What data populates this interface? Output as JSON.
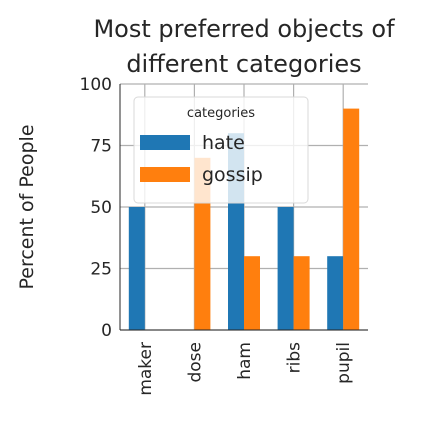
{
  "chart_data": {
    "type": "bar",
    "title": "Most preferred objects of different categories",
    "title_lines": [
      "Most preferred objects of",
      "different categories"
    ],
    "xlabel": "",
    "ylabel": "Percent of People",
    "categories": [
      "maker",
      "dose",
      "ham",
      "ribs",
      "pupil"
    ],
    "series": [
      {
        "name": "hate",
        "color": "#1f77b4",
        "values": [
          50,
          0,
          80,
          50,
          30
        ]
      },
      {
        "name": "gossip",
        "color": "#ff7f0e",
        "values": [
          0,
          70,
          30,
          30,
          90
        ]
      }
    ],
    "ylim": [
      0,
      100
    ],
    "yticks": [
      0,
      25,
      50,
      75,
      100
    ],
    "grid": true,
    "legend": {
      "title": "categories",
      "placement": "top-center"
    }
  }
}
